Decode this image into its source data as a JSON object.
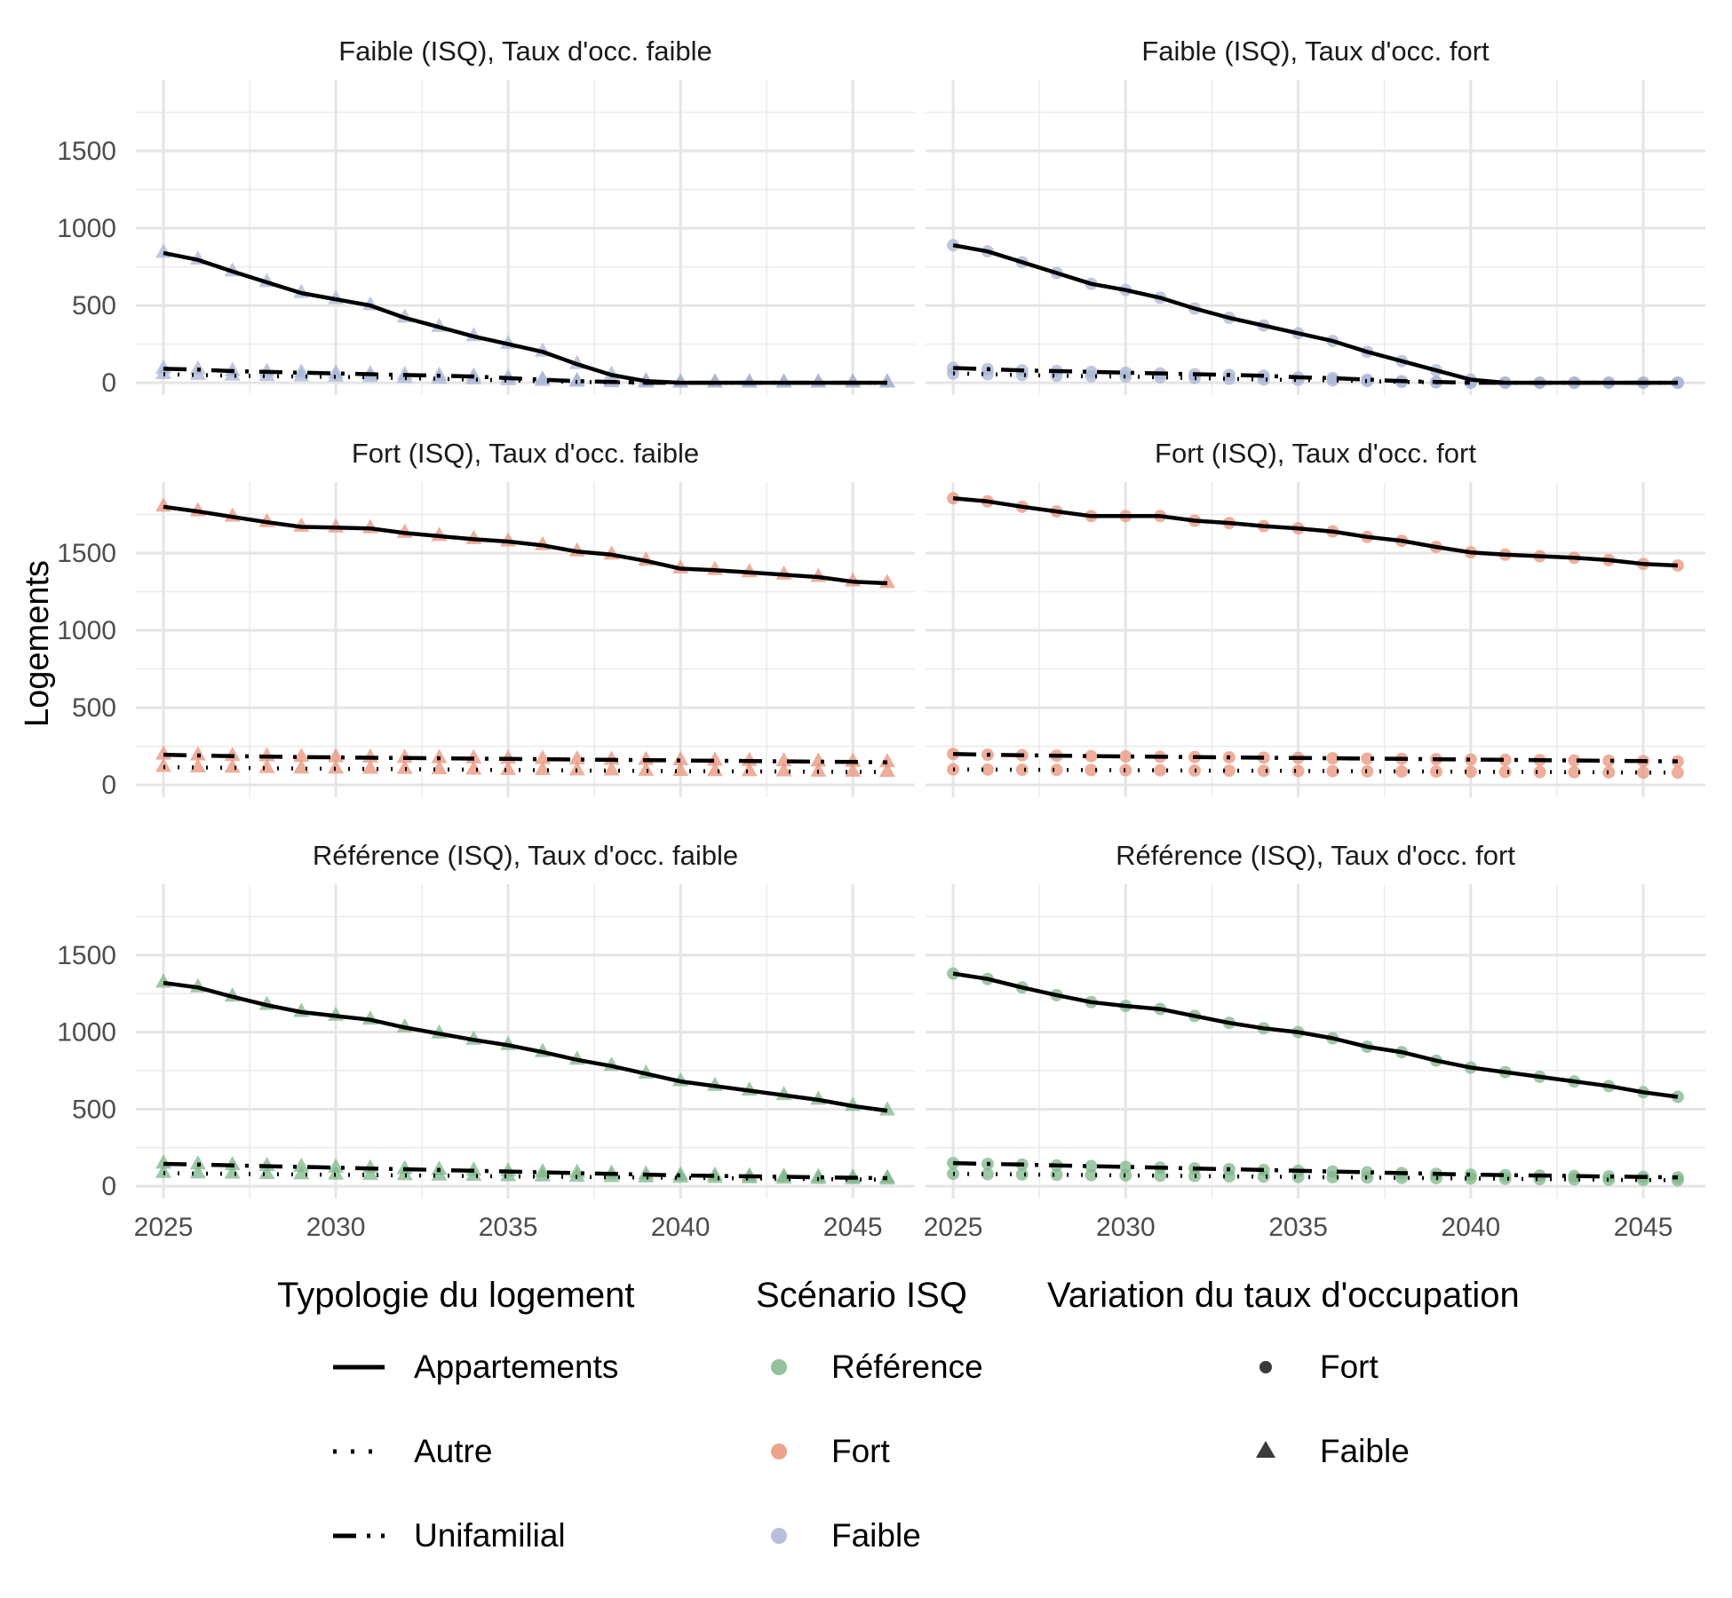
{
  "chart_data": {
    "type": "line",
    "ylabel": "Logements",
    "xlabel": "",
    "x_range": [
      2024.2,
      2046.8
    ],
    "ylim": [
      -80,
      1960
    ],
    "x_ticks": [
      2025,
      2030,
      2035,
      2040,
      2045
    ],
    "y_ticks": [
      0,
      500,
      1000,
      1500
    ],
    "grid": true,
    "legend_position": "bottom",
    "colors": {
      "Référence": "#7fb68a",
      "Fort": "#e8937a",
      "Faible": "#a9b5d4"
    },
    "x": [
      2025,
      2026,
      2027,
      2028,
      2029,
      2030,
      2031,
      2032,
      2033,
      2034,
      2035,
      2036,
      2037,
      2038,
      2039,
      2040,
      2041,
      2042,
      2043,
      2044,
      2045,
      2046
    ],
    "legend": {
      "typologie": {
        "title": "Typologie du logement",
        "items": [
          {
            "label": "Appartements",
            "linetype": "solid"
          },
          {
            "label": "Autre",
            "linetype": "dotted"
          },
          {
            "label": "Unifamilial",
            "linetype": "dashdot"
          }
        ]
      },
      "scenario": {
        "title": "Scénario ISQ",
        "items": [
          {
            "label": "Référence",
            "color": "#7fb68a"
          },
          {
            "label": "Fort",
            "color": "#e8937a"
          },
          {
            "label": "Faible",
            "color": "#a9b5d4"
          }
        ]
      },
      "variation": {
        "title": "Variation du taux d'occupation",
        "items": [
          {
            "label": "Fort",
            "shape": "circle"
          },
          {
            "label": "Faible",
            "shape": "triangle"
          }
        ]
      }
    },
    "panels": [
      {
        "title": "Faible (ISQ), Taux d'occ. faible",
        "scenario": "Faible",
        "shape": "triangle",
        "series": [
          {
            "name": "Appartements",
            "values": [
              840,
              795,
              720,
              650,
              580,
              540,
              500,
              420,
              360,
              300,
              250,
              200,
              120,
              50,
              10,
              0,
              0,
              0,
              0,
              0,
              0,
              0
            ]
          },
          {
            "name": "Autre",
            "values": [
              55,
              50,
              45,
              42,
              40,
              38,
              35,
              30,
              25,
              20,
              15,
              10,
              5,
              2,
              0,
              0,
              0,
              0,
              0,
              0,
              0,
              0
            ]
          },
          {
            "name": "Unifamilial",
            "values": [
              90,
              85,
              75,
              70,
              65,
              60,
              55,
              50,
              45,
              40,
              30,
              20,
              10,
              5,
              0,
              0,
              0,
              0,
              0,
              0,
              0,
              0
            ]
          }
        ]
      },
      {
        "title": "Faible (ISQ), Taux d'occ. fort",
        "scenario": "Faible",
        "shape": "circle",
        "series": [
          {
            "name": "Appartements",
            "values": [
              890,
              850,
              780,
              710,
              640,
              600,
              550,
              480,
              420,
              370,
              320,
              270,
              200,
              140,
              80,
              20,
              0,
              0,
              0,
              0,
              0,
              0
            ]
          },
          {
            "name": "Autre",
            "values": [
              60,
              55,
              50,
              45,
              42,
              40,
              35,
              30,
              25,
              20,
              18,
              15,
              10,
              5,
              2,
              0,
              0,
              0,
              0,
              0,
              0,
              0
            ]
          },
          {
            "name": "Unifamilial",
            "values": [
              95,
              88,
              80,
              75,
              70,
              65,
              60,
              55,
              50,
              45,
              35,
              30,
              20,
              10,
              5,
              0,
              0,
              0,
              0,
              0,
              0,
              0
            ]
          }
        ]
      },
      {
        "title": "Fort (ISQ), Taux d'occ. faible",
        "scenario": "Fort",
        "shape": "triangle",
        "series": [
          {
            "name": "Appartements",
            "values": [
              1800,
              1770,
              1735,
              1700,
              1670,
              1665,
              1660,
              1630,
              1610,
              1590,
              1575,
              1550,
              1510,
              1490,
              1450,
              1400,
              1390,
              1375,
              1360,
              1345,
              1315,
              1305
            ]
          },
          {
            "name": "Autre",
            "values": [
              115,
              112,
              110,
              108,
              105,
              104,
              103,
              102,
              100,
              98,
              96,
              95,
              93,
              92,
              90,
              89,
              88,
              87,
              86,
              85,
              84,
              83
            ]
          },
          {
            "name": "Unifamilial",
            "values": [
              195,
              190,
              186,
              183,
              180,
              178,
              176,
              174,
              172,
              170,
              168,
              166,
              164,
              162,
              160,
              158,
              156,
              154,
              152,
              150,
              148,
              146
            ]
          }
        ]
      },
      {
        "title": "Fort (ISQ), Taux d'occ. fort",
        "scenario": "Fort",
        "shape": "circle",
        "series": [
          {
            "name": "Appartements",
            "values": [
              1855,
              1835,
              1800,
              1770,
              1740,
              1740,
              1740,
              1710,
              1695,
              1675,
              1660,
              1640,
              1605,
              1580,
              1540,
              1505,
              1490,
              1480,
              1470,
              1455,
              1430,
              1420
            ]
          },
          {
            "name": "Autre",
            "values": [
              100,
              99,
              98,
              97,
              96,
              95,
              94,
              93,
              92,
              91,
              90,
              89,
              88,
              87,
              86,
              85,
              84,
              83,
              82,
              81,
              80,
              79
            ]
          },
          {
            "name": "Unifamilial",
            "values": [
              200,
              195,
              192,
              189,
              186,
              184,
              182,
              180,
              178,
              176,
              174,
              172,
              170,
              168,
              166,
              164,
              162,
              160,
              158,
              156,
              154,
              152
            ]
          }
        ]
      },
      {
        "title": "Référence (ISQ), Taux d'occ. faible",
        "scenario": "Référence",
        "shape": "triangle",
        "series": [
          {
            "name": "Appartements",
            "values": [
              1320,
              1290,
              1230,
              1175,
              1130,
              1105,
              1080,
              1030,
              990,
              950,
              915,
              870,
              820,
              780,
              730,
              680,
              650,
              620,
              590,
              560,
              520,
              490
            ]
          },
          {
            "name": "Autre",
            "values": [
              85,
              82,
              80,
              78,
              76,
              74,
              72,
              70,
              68,
              66,
              64,
              62,
              60,
              58,
              56,
              54,
              52,
              50,
              48,
              46,
              44,
              42
            ]
          },
          {
            "name": "Unifamilial",
            "values": [
              145,
              140,
              135,
              130,
              125,
              120,
              115,
              110,
              105,
              100,
              95,
              90,
              85,
              80,
              75,
              70,
              67,
              64,
              61,
              58,
              55,
              52
            ]
          }
        ]
      },
      {
        "title": "Référence (ISQ), Taux d'occ. fort",
        "scenario": "Référence",
        "shape": "circle",
        "series": [
          {
            "name": "Appartements",
            "values": [
              1380,
              1345,
              1290,
              1240,
              1195,
              1170,
              1150,
              1105,
              1060,
              1025,
              1000,
              960,
              905,
              870,
              815,
              770,
              740,
              710,
              680,
              650,
              610,
              580
            ]
          },
          {
            "name": "Autre",
            "values": [
              80,
              78,
              76,
              74,
              72,
              70,
              68,
              66,
              64,
              62,
              60,
              58,
              56,
              54,
              52,
              50,
              48,
              46,
              44,
              42,
              40,
              38
            ]
          },
          {
            "name": "Unifamilial",
            "values": [
              150,
              145,
              140,
              135,
              130,
              125,
              120,
              115,
              110,
              105,
              100,
              95,
              90,
              85,
              80,
              75,
              72,
              69,
              66,
              63,
              60,
              57
            ]
          }
        ]
      }
    ]
  }
}
